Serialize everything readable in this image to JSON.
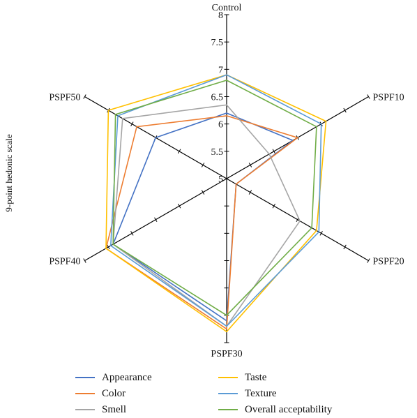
{
  "chart_data": {
    "type": "radar",
    "ylabel": "9-point hedonic scale",
    "axes": [
      "Control",
      "PSPF10",
      "PSPF20",
      "PSPF30",
      "PSPF40",
      "PSPF50"
    ],
    "range": [
      5,
      8
    ],
    "ticks": [
      "5",
      "5.5",
      "6",
      "6.5",
      "7",
      "7.5",
      "8"
    ],
    "series": [
      {
        "name": "Appearance",
        "color": "#4472C4",
        "values": [
          6.2,
          6.4,
          5.2,
          7.6,
          7.4,
          6.5
        ]
      },
      {
        "name": "Color",
        "color": "#ED7D31",
        "values": [
          6.15,
          6.5,
          5.2,
          7.75,
          7.55,
          6.9
        ]
      },
      {
        "name": "Smell",
        "color": "#A5A5A5",
        "values": [
          6.35,
          5.9,
          6.55,
          7.7,
          7.4,
          7.2
        ]
      },
      {
        "name": "Taste",
        "color": "#FFC000",
        "values": [
          6.9,
          7.1,
          6.9,
          7.8,
          7.55,
          7.5
        ]
      },
      {
        "name": "Texture",
        "color": "#5B9BD5",
        "values": [
          6.9,
          7.0,
          6.95,
          7.7,
          7.45,
          7.3
        ]
      },
      {
        "name": "Overall acceptability",
        "color": "#70AD47",
        "values": [
          6.8,
          6.9,
          6.8,
          7.5,
          7.4,
          7.35
        ]
      }
    ],
    "legend_position": "bottom"
  }
}
